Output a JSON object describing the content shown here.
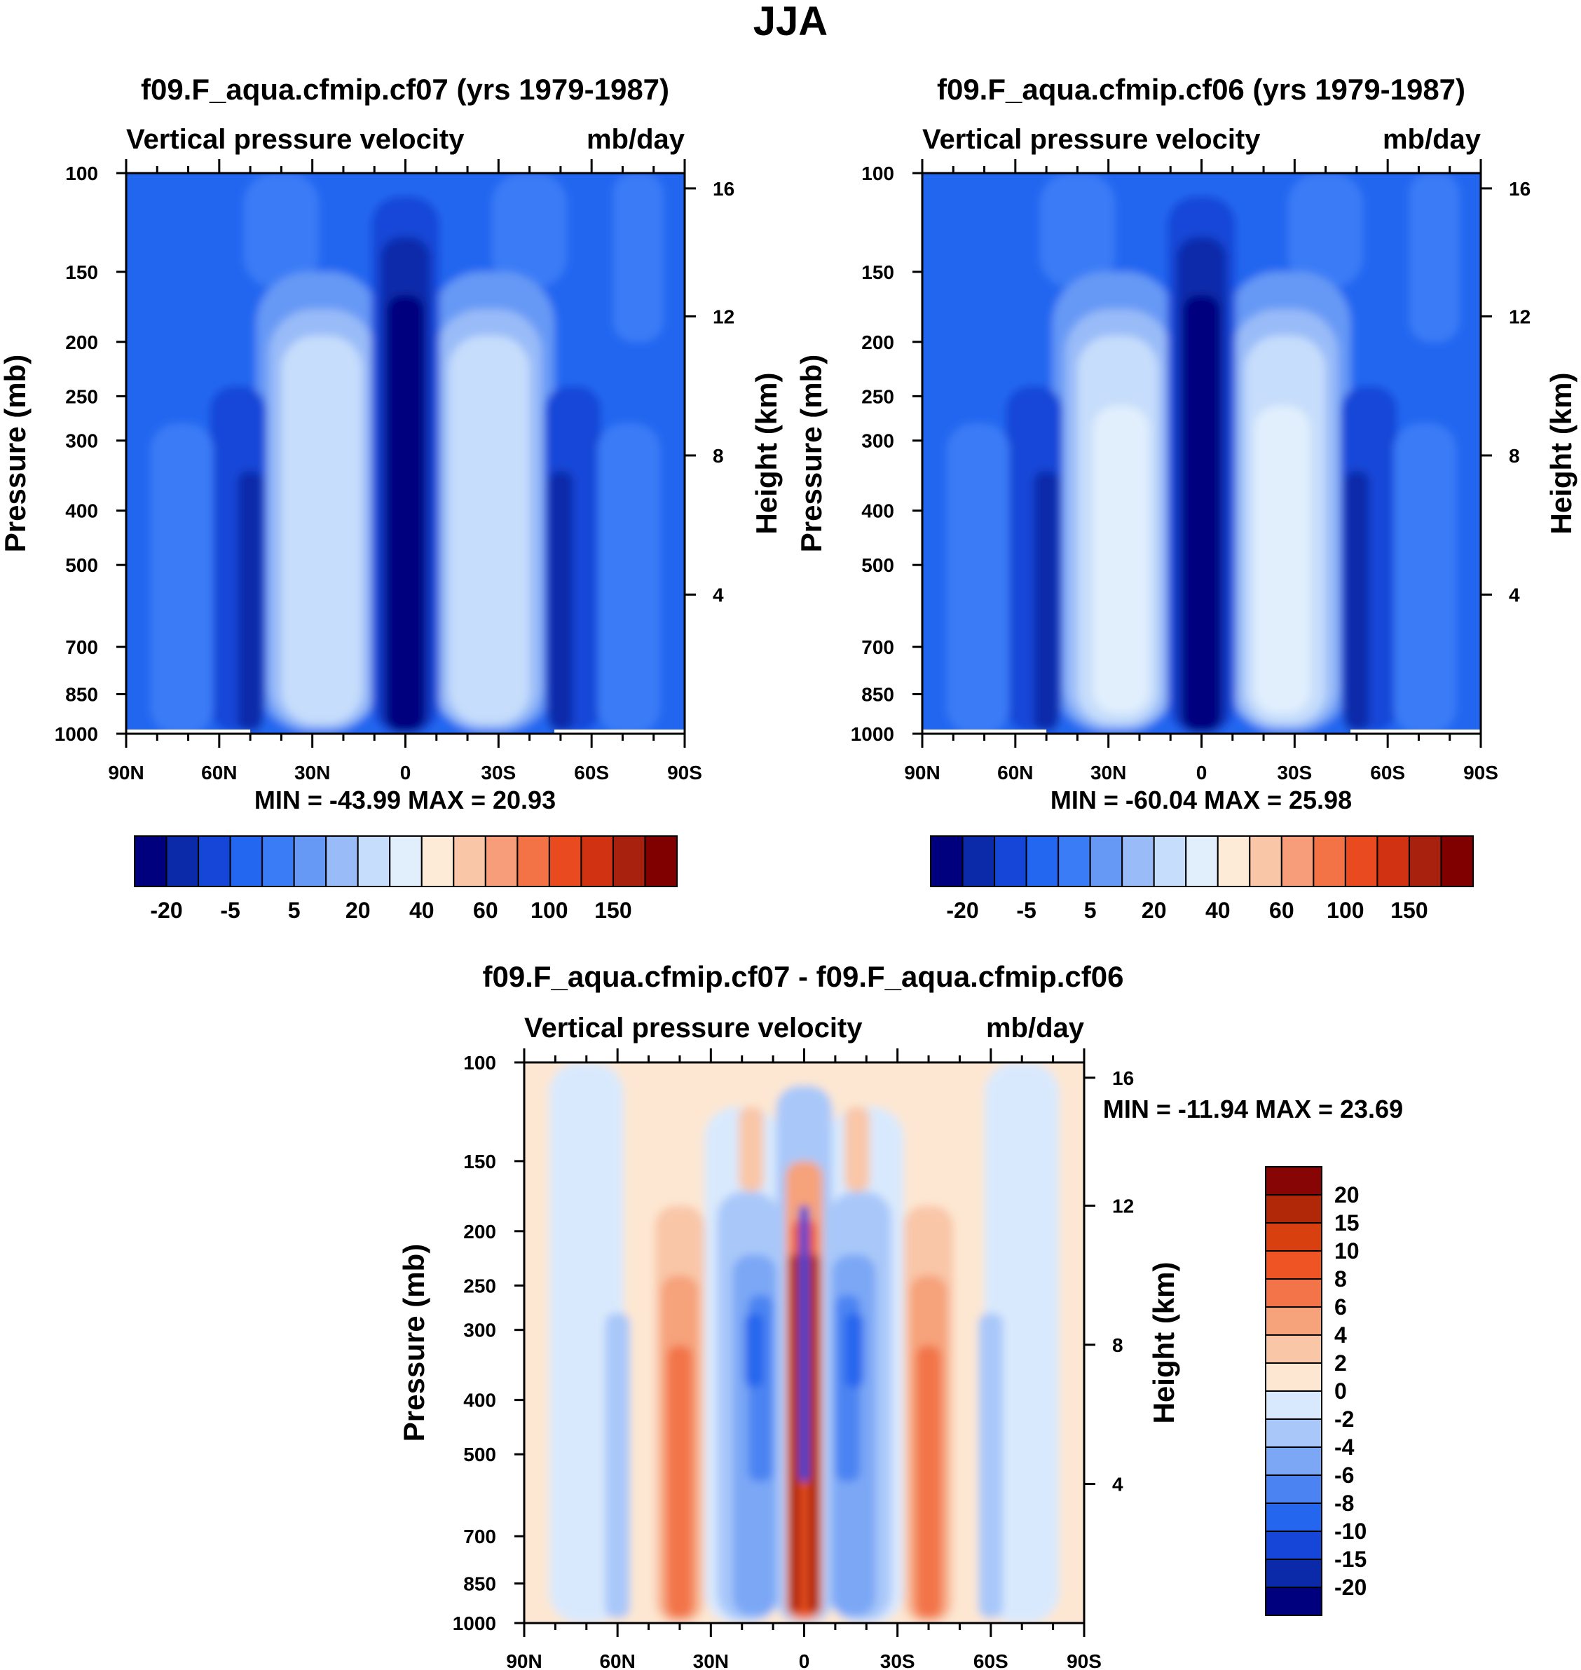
{
  "figure": {
    "title": "JJA"
  },
  "colors": {
    "main_scale": [
      "#00007f",
      "#0a2aaa",
      "#1646d8",
      "#2366f0",
      "#3a7cf6",
      "#6699f5",
      "#99bbf8",
      "#c6ddfb",
      "#e1effd",
      "#fdebd8",
      "#f9c6a8",
      "#f79d7a",
      "#f47346",
      "#ea4a1f",
      "#d03212",
      "#a8200e",
      "#800000"
    ],
    "diff_scale": [
      "#00007f",
      "#0a2aaa",
      "#1646d8",
      "#2566ee",
      "#4b84f2",
      "#7ca7f5",
      "#a9c8f9",
      "#d9e9fd",
      "#fde7d2",
      "#f9c6a8",
      "#f6a27a",
      "#f27448",
      "#ef5424",
      "#d9400f",
      "#b02808",
      "#870505"
    ]
  },
  "chart_data": [
    {
      "type": "contour",
      "title": "f09.F_aqua.cfmip.cf07 (yrs 1979-1987)",
      "variable": "Vertical pressure velocity",
      "units": "mb/day",
      "xlabel": "",
      "ylabel": "Pressure (mb)",
      "ylabel_right": "Height (km)",
      "x_ticks": [
        "90N",
        "60N",
        "30N",
        "0",
        "30S",
        "60S",
        "90S"
      ],
      "y_ticks": [
        100,
        150,
        200,
        250,
        300,
        400,
        500,
        700,
        850,
        1000
      ],
      "y_right_ticks": [
        16,
        12,
        8,
        4
      ],
      "ylim": [
        1000,
        100
      ],
      "stats": "MIN = -43.99  MAX =  20.93",
      "min": -43.99,
      "max": 20.93,
      "colorbar_labels": [
        "-20",
        "-5",
        "5",
        "20",
        "40",
        "60",
        "100",
        "150"
      ]
    },
    {
      "type": "contour",
      "title": "f09.F_aqua.cfmip.cf06 (yrs 1979-1987)",
      "variable": "Vertical pressure velocity",
      "units": "mb/day",
      "xlabel": "",
      "ylabel": "Pressure (mb)",
      "ylabel_right": "Height (km)",
      "x_ticks": [
        "90N",
        "60N",
        "30N",
        "0",
        "30S",
        "60S",
        "90S"
      ],
      "y_ticks": [
        100,
        150,
        200,
        250,
        300,
        400,
        500,
        700,
        850,
        1000
      ],
      "y_right_ticks": [
        16,
        12,
        8,
        4
      ],
      "ylim": [
        1000,
        100
      ],
      "stats": "MIN = -60.04  MAX =  25.98",
      "min": -60.04,
      "max": 25.98,
      "colorbar_labels": [
        "-20",
        "-5",
        "5",
        "20",
        "40",
        "60",
        "100",
        "150"
      ]
    },
    {
      "type": "contour",
      "title": "f09.F_aqua.cfmip.cf07 - f09.F_aqua.cfmip.cf06",
      "variable": "Vertical pressure velocity",
      "units": "mb/day",
      "xlabel": "",
      "ylabel": "Pressure (mb)",
      "ylabel_right": "Height (km)",
      "x_ticks": [
        "90N",
        "60N",
        "30N",
        "0",
        "30S",
        "60S",
        "90S"
      ],
      "y_ticks": [
        100,
        150,
        200,
        250,
        300,
        400,
        500,
        700,
        850,
        1000
      ],
      "y_right_ticks": [
        16,
        12,
        8,
        4
      ],
      "ylim": [
        1000,
        100
      ],
      "stats": "MIN = -11.94  MAX =  23.69",
      "min": -11.94,
      "max": 23.69,
      "colorbar_labels": [
        "20",
        "15",
        "10",
        "8",
        "6",
        "4",
        "2",
        "0",
        "-2",
        "-4",
        "-6",
        "-8",
        "-10",
        "-15",
        "-20"
      ]
    }
  ]
}
